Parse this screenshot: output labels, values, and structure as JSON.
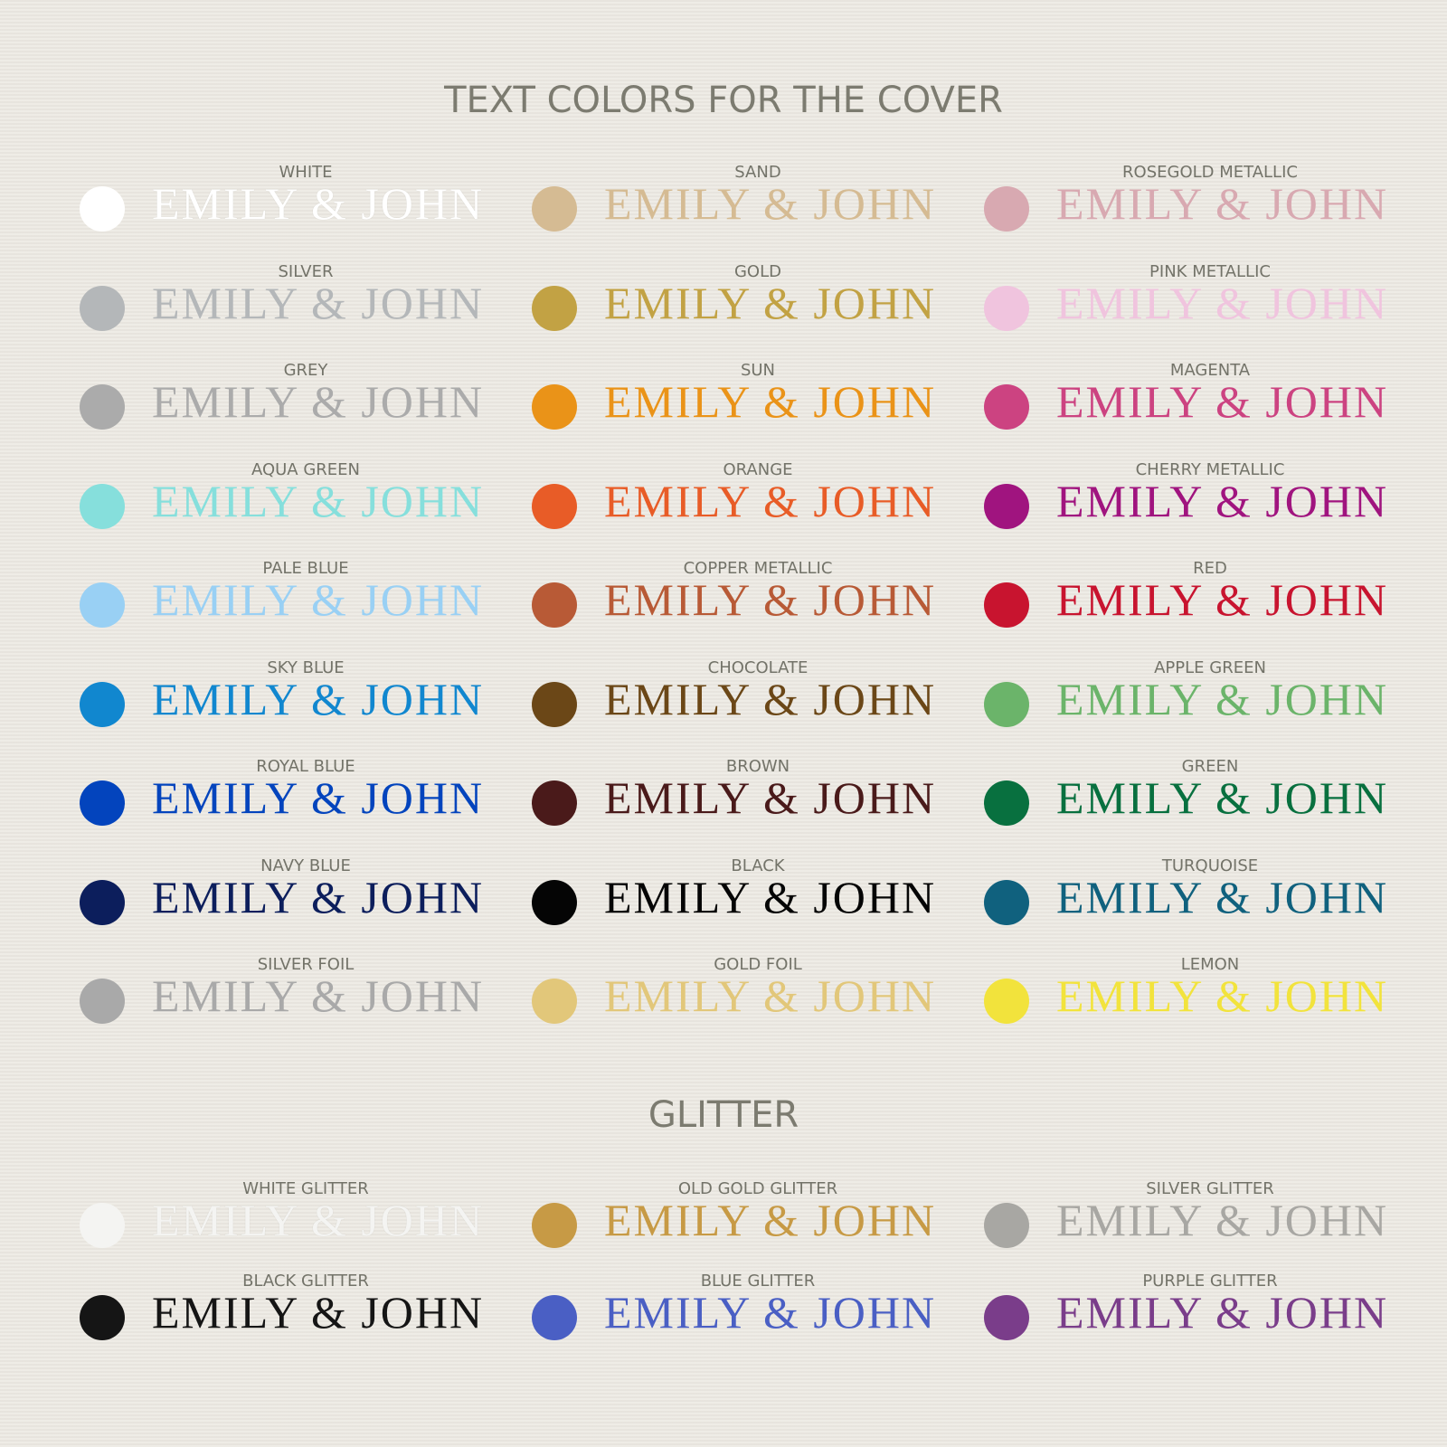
{
  "title": "TEXT COLORS FOR THE COVER",
  "sample_text": "EMILY & JOHN",
  "colors": [
    {
      "label": "WHITE",
      "color": "#ffffff"
    },
    {
      "label": "SILVER",
      "color": "#b4b7b9"
    },
    {
      "label": "GREY",
      "color": "#ababab"
    },
    {
      "label": "AQUA GREEN",
      "color": "#86dfdc"
    },
    {
      "label": "PALE BLUE",
      "color": "#99d0f4"
    },
    {
      "label": "SKY BLUE",
      "color": "#1187cf"
    },
    {
      "label": "ROYAL BLUE",
      "color": "#0344bd"
    },
    {
      "label": "NAVY BLUE",
      "color": "#0c1e5c"
    },
    {
      "label": "SILVER FOIL",
      "color": "#a9a9a9"
    },
    {
      "label": "SAND",
      "color": "#d5bb93"
    },
    {
      "label": "GOLD",
      "color": "#c2a244"
    },
    {
      "label": "SUN",
      "color": "#ea9318"
    },
    {
      "label": "ORANGE",
      "color": "#e85c27"
    },
    {
      "label": "COPPER METALLIC",
      "color": "#b85a36"
    },
    {
      "label": "CHOCOLATE",
      "color": "#6b4717"
    },
    {
      "label": "BROWN",
      "color": "#4a1a1a"
    },
    {
      "label": "BLACK",
      "color": "#050505"
    },
    {
      "label": "GOLD FOIL",
      "color": "#e2c77a"
    },
    {
      "label": "ROSEGOLD METALLIC",
      "color": "#d8a9b1"
    },
    {
      "label": "PINK METALLIC",
      "color": "#f0c4de"
    },
    {
      "label": "MAGENTA",
      "color": "#cc4381"
    },
    {
      "label": "CHERRY METALLIC",
      "color": "#a0147f"
    },
    {
      "label": "RED",
      "color": "#c8142f"
    },
    {
      "label": "APPLE GREEN",
      "color": "#6bb46a"
    },
    {
      "label": "GREEN",
      "color": "#08703f"
    },
    {
      "label": "TURQUOISE",
      "color": "#10617e"
    },
    {
      "label": "LEMON",
      "color": "#f2e33c"
    }
  ],
  "glitter_title": "GLITTER",
  "glitter": [
    {
      "label": "WHITE GLITTER",
      "color": "#f4f4f2"
    },
    {
      "label": "BLACK GLITTER",
      "color": "#151515"
    },
    {
      "label": "OLD GOLD GLITTER",
      "color": "#c79a45"
    },
    {
      "label": "BLUE GLITTER",
      "color": "#4a5fc4"
    },
    {
      "label": "SILVER GLITTER",
      "color": "#a8a7a3"
    },
    {
      "label": "PURPLE GLITTER",
      "color": "#7a3d8a"
    }
  ]
}
